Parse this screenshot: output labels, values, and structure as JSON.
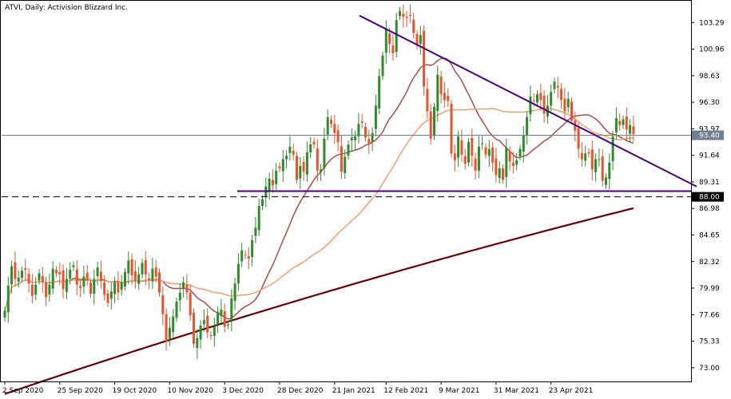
{
  "chart_data": {
    "type": "candlestick",
    "title": "ATVI, Daily:  Activision Blizzard Inc.",
    "x_tick_labels": [
      "2 Sep 2020",
      "25 Sep 2020",
      "19 Oct 2020",
      "10 Nov 2020",
      "3 Dec 2020",
      "28 Dec 2020",
      "21 Jan 2021",
      "12 Feb 2021",
      "9 Mar 2021",
      "31 Mar 2021",
      "23 Apr 2021"
    ],
    "y_tick_labels": [
      "103.29",
      "100.96",
      "98.63",
      "96.30",
      "93.97",
      "91.64",
      "89.31",
      "86.98",
      "84.65",
      "82.32",
      "79.99",
      "77.66",
      "75.33",
      "73.00"
    ],
    "ylim": [
      71.8,
      105.2
    ],
    "current_price": 93.4,
    "current_price_label": "93.40",
    "level_price": 88.0,
    "level_price_label": "88.00",
    "colors": {
      "bull": "#2e8b2e",
      "bear": "#e8542e",
      "ma_fast": "#b04a4a",
      "ma_mid": "#f0a070",
      "ma_slow": "#6b0000",
      "trend": "#4b0082",
      "grid": "#000000"
    },
    "closes": [
      78.0,
      80.2,
      81.9,
      80.8,
      80.9,
      81.5,
      81.6,
      80.4,
      79.3,
      80.3,
      81.3,
      80.5,
      79.2,
      80.3,
      81.7,
      81.3,
      81.2,
      79.9,
      80.8,
      81.6,
      82.0,
      80.3,
      80.0,
      81.0,
      80.7,
      79.5,
      80.8,
      81.8,
      80.6,
      79.4,
      78.7,
      79.7,
      80.5,
      79.6,
      80.5,
      81.4,
      82.4,
      81.1,
      80.6,
      81.2,
      82.2,
      81.2,
      80.7,
      81.7,
      81.0,
      79.6,
      77.7,
      75.3,
      76.5,
      77.5,
      78.8,
      79.6,
      80.5,
      79.6,
      77.6,
      75.1,
      75.6,
      76.7,
      77.2,
      76.1,
      75.8,
      76.6,
      77.9,
      78.1,
      76.6,
      76.8,
      79.1,
      80.4,
      82.1,
      83.3,
      82.9,
      82.6,
      84.2,
      85.3,
      87.2,
      87.8,
      88.9,
      89.6,
      89.0,
      90.3,
      90.5,
      91.3,
      91.6,
      92.4,
      91.7,
      89.5,
      90.7,
      90.2,
      91.9,
      92.6,
      92.6,
      90.3,
      90.4,
      93.1,
      95.0,
      94.4,
      93.6,
      92.8,
      90.2,
      91.5,
      92.6,
      93.2,
      93.3,
      94.4,
      94.5,
      93.2,
      92.7,
      93.6,
      96.0,
      98.6,
      100.4,
      102.7,
      101.4,
      100.6,
      103.5,
      104.3,
      103.8,
      103.7,
      103.9,
      102.4,
      101.3,
      102.2,
      97.7,
      95.5,
      93.1,
      95.9,
      98.7,
      97.0,
      96.5,
      96.4,
      91.8,
      91.2,
      93.3,
      91.7,
      90.9,
      92.8,
      91.6,
      90.3,
      92.4,
      92.7,
      91.7,
      92.2,
      91.0,
      89.9,
      90.5,
      89.5,
      92.3,
      91.1,
      90.7,
      91.2,
      92.2,
      93.4,
      95.0,
      96.8,
      96.4,
      97.0,
      96.5,
      95.3,
      96.0,
      97.2,
      98.1,
      97.6,
      96.5,
      95.5,
      96.6,
      94.7,
      93.8,
      92.2,
      91.3,
      91.8,
      91.8,
      90.4,
      91.3,
      91.3,
      89.4,
      89.7,
      91.0,
      93.3,
      94.9,
      94.3,
      94.8,
      93.9,
      94.3,
      93.5
    ]
  }
}
